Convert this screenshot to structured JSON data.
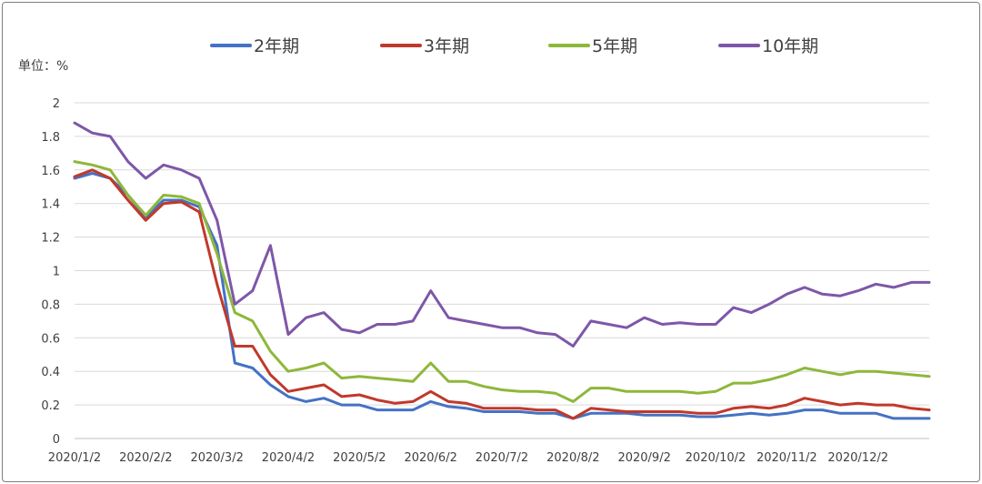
{
  "chart_data": {
    "type": "line",
    "unit_label": "单位：%",
    "ylim": [
      0,
      2
    ],
    "y_ticks": [
      "0",
      "0.2",
      "0.4",
      "0.6",
      "0.8",
      "1",
      "1.2",
      "1.4",
      "1.6",
      "1.8",
      "2"
    ],
    "x_ticks": [
      "2020/1/2",
      "2020/2/2",
      "2020/3/2",
      "2020/4/2",
      "2020/5/2",
      "2020/6/2",
      "2020/7/2",
      "2020/8/2",
      "2020/9/2",
      "2020/10/2",
      "2020/11/2",
      "2020/12/2"
    ],
    "grid": "horizontal",
    "legend_position": "top",
    "x": [
      "2020/1/2",
      "2020/1/9",
      "2020/1/16",
      "2020/1/23",
      "2020/2/2",
      "2020/2/9",
      "2020/2/16",
      "2020/2/23",
      "2020/3/2",
      "2020/3/9",
      "2020/3/16",
      "2020/3/23",
      "2020/4/2",
      "2020/4/9",
      "2020/4/16",
      "2020/4/23",
      "2020/5/2",
      "2020/5/9",
      "2020/5/16",
      "2020/5/23",
      "2020/6/2",
      "2020/6/9",
      "2020/6/16",
      "2020/6/23",
      "2020/7/2",
      "2020/7/9",
      "2020/7/16",
      "2020/7/23",
      "2020/8/2",
      "2020/8/9",
      "2020/8/16",
      "2020/8/23",
      "2020/9/2",
      "2020/9/9",
      "2020/9/16",
      "2020/9/23",
      "2020/10/2",
      "2020/10/9",
      "2020/10/16",
      "2020/10/23",
      "2020/11/2",
      "2020/11/9",
      "2020/11/16",
      "2020/11/23",
      "2020/12/2",
      "2020/12/9",
      "2020/12/16",
      "2020/12/23",
      "2020/12/31"
    ],
    "series": [
      {
        "name": "2年期",
        "color": "#4472C4",
        "values": [
          1.55,
          1.58,
          1.55,
          1.45,
          1.32,
          1.42,
          1.42,
          1.38,
          1.15,
          0.45,
          0.42,
          0.32,
          0.25,
          0.22,
          0.24,
          0.2,
          0.2,
          0.17,
          0.17,
          0.17,
          0.22,
          0.19,
          0.18,
          0.16,
          0.16,
          0.16,
          0.15,
          0.15,
          0.12,
          0.15,
          0.15,
          0.15,
          0.14,
          0.14,
          0.14,
          0.13,
          0.13,
          0.14,
          0.15,
          0.14,
          0.15,
          0.17,
          0.17,
          0.15,
          0.15,
          0.15,
          0.12,
          0.12,
          0.12
        ]
      },
      {
        "name": "3年期",
        "color": "#C0392B",
        "values": [
          1.56,
          1.6,
          1.55,
          1.42,
          1.3,
          1.4,
          1.41,
          1.35,
          0.92,
          0.55,
          0.55,
          0.38,
          0.28,
          0.3,
          0.32,
          0.25,
          0.26,
          0.23,
          0.21,
          0.22,
          0.28,
          0.22,
          0.21,
          0.18,
          0.18,
          0.18,
          0.17,
          0.17,
          0.12,
          0.18,
          0.17,
          0.16,
          0.16,
          0.16,
          0.16,
          0.15,
          0.15,
          0.18,
          0.19,
          0.18,
          0.2,
          0.24,
          0.22,
          0.2,
          0.21,
          0.2,
          0.2,
          0.18,
          0.17
        ]
      },
      {
        "name": "5年期",
        "color": "#8DB83A",
        "values": [
          1.65,
          1.63,
          1.6,
          1.45,
          1.33,
          1.45,
          1.44,
          1.4,
          1.1,
          0.75,
          0.7,
          0.52,
          0.4,
          0.42,
          0.45,
          0.36,
          0.37,
          0.36,
          0.35,
          0.34,
          0.45,
          0.34,
          0.34,
          0.31,
          0.29,
          0.28,
          0.28,
          0.27,
          0.22,
          0.3,
          0.3,
          0.28,
          0.28,
          0.28,
          0.28,
          0.27,
          0.28,
          0.33,
          0.33,
          0.35,
          0.38,
          0.42,
          0.4,
          0.38,
          0.4,
          0.4,
          0.39,
          0.38,
          0.37
        ]
      },
      {
        "name": "10年期",
        "color": "#7E57A8",
        "values": [
          1.88,
          1.82,
          1.8,
          1.65,
          1.55,
          1.63,
          1.6,
          1.55,
          1.3,
          0.8,
          0.88,
          1.15,
          0.62,
          0.72,
          0.75,
          0.65,
          0.63,
          0.68,
          0.68,
          0.7,
          0.88,
          0.72,
          0.7,
          0.68,
          0.66,
          0.66,
          0.63,
          0.62,
          0.55,
          0.7,
          0.68,
          0.66,
          0.72,
          0.68,
          0.69,
          0.68,
          0.68,
          0.78,
          0.75,
          0.8,
          0.86,
          0.9,
          0.86,
          0.85,
          0.88,
          0.92,
          0.9,
          0.93,
          0.93
        ]
      }
    ]
  }
}
